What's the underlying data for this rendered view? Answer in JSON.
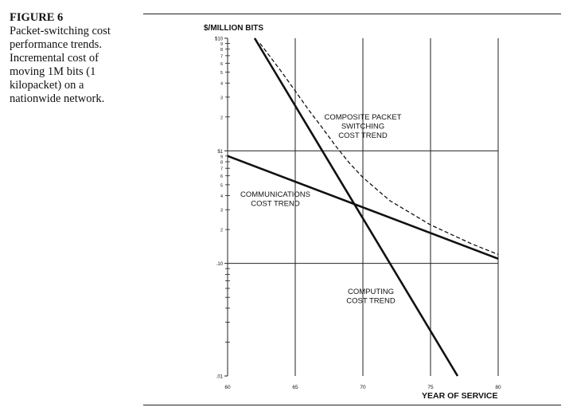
{
  "caption": {
    "label": "FIGURE 6",
    "lines": [
      "Packet-switching cost",
      "performance trends.",
      "Incremental cost of",
      "moving 1M bits (1",
      "kilopacket) on a",
      "nationwide network."
    ]
  },
  "chart_data": {
    "type": "line",
    "title": "",
    "ylabel": "$/MILLION BITS",
    "xlabel": "YEAR OF SERVICE",
    "y_scale": "log",
    "xlim": [
      60,
      80
    ],
    "ylim": [
      0.01,
      10
    ],
    "x_ticks": [
      60,
      65,
      70,
      75,
      80
    ],
    "x_tick_labels": [
      "60",
      "65",
      "70",
      "75",
      "80"
    ],
    "y_major_ticks": [
      10,
      1,
      0.1,
      0.01
    ],
    "y_major_labels": [
      "$10",
      "$1",
      ".10",
      ".01"
    ],
    "y_minor_labels": [
      "9",
      "8",
      "7",
      "6",
      "5",
      "4",
      "3",
      "2"
    ],
    "grid": true,
    "series": [
      {
        "name": "COMMUNICATIONS COST TREND",
        "style": "solid",
        "x": [
          60,
          80
        ],
        "y": [
          0.9,
          0.11
        ]
      },
      {
        "name": "COMPUTING COST TREND",
        "style": "solid",
        "x": [
          62,
          77
        ],
        "y": [
          10,
          0.01
        ]
      },
      {
        "name": "COMPOSITE PACKET SWITCHING COST TREND",
        "style": "dashed",
        "x": [
          62.4,
          64,
          65,
          66,
          67,
          68,
          69,
          70,
          72,
          75,
          78,
          80
        ],
        "y": [
          9.0,
          5.0,
          3.4,
          2.3,
          1.6,
          1.1,
          0.78,
          0.58,
          0.36,
          0.22,
          0.15,
          0.12
        ]
      }
    ],
    "annotations": [
      {
        "series": 2,
        "lines": [
          "COMPOSITE PACKET",
          "SWITCHING",
          "COST TREND"
        ]
      },
      {
        "series": 0,
        "lines": [
          "COMMUNICATIONS",
          "COST TREND"
        ]
      },
      {
        "series": 1,
        "lines": [
          "COMPUTING",
          "COST TREND"
        ]
      }
    ]
  }
}
